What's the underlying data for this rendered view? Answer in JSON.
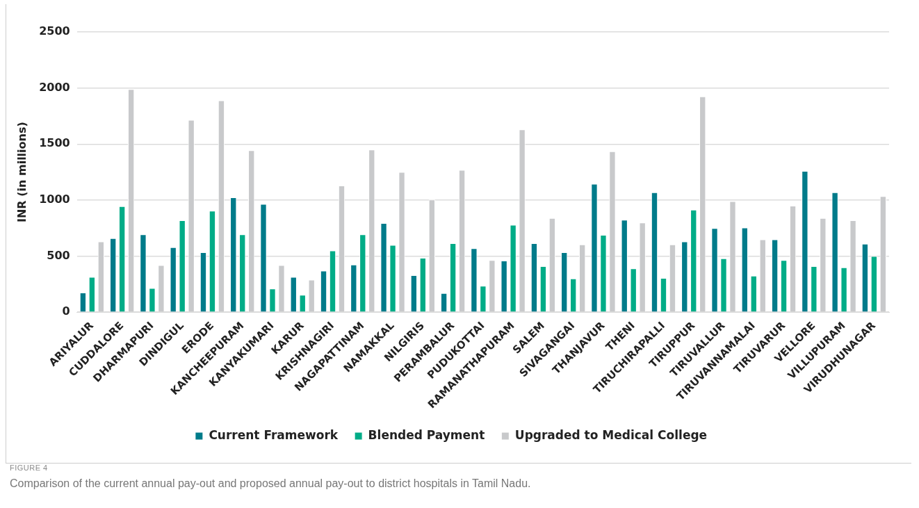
{
  "chart_data": {
    "type": "bar",
    "ylabel": "INR (in millions)",
    "categories": [
      "ARIYALUR",
      "CUDDALORE",
      "DHARMAPURI",
      "DINDIGUL",
      "ERODE",
      "KANCHEEPURAM",
      "KANYAKUMARI",
      "KARUR",
      "KRISHNAGIRI",
      "NAGAPATTINAM",
      "NAMAKKAL",
      "NILGIRIS",
      "PERAMBALUR",
      "PUDUKOTTAI",
      "RAMANATHAPURAM",
      "SALEM",
      "SIVAGANGAI",
      "THANJAVUR",
      "THENI",
      "TIRUCHIRAPALLI",
      "TIRUPPUR",
      "TIRUVALLUR",
      "TIRUVANNAMALAI",
      "TIRUVARUR",
      "VELLORE",
      "VILLUPURAM",
      "VIRUDHUNAGAR"
    ],
    "series": [
      {
        "name": "Current Framework",
        "color": "#007b8a",
        "values": [
          175,
          660,
          695,
          580,
          535,
          1025,
          965,
          315,
          370,
          425,
          795,
          330,
          170,
          570,
          460,
          615,
          535,
          1145,
          825,
          1070,
          630,
          750,
          755,
          650,
          1260,
          1070,
          610
        ]
      },
      {
        "name": "Blended Payment",
        "color": "#00ac87",
        "values": [
          315,
          945,
          215,
          820,
          905,
          695,
          210,
          155,
          550,
          695,
          600,
          485,
          615,
          235,
          780,
          410,
          300,
          690,
          390,
          305,
          915,
          480,
          325,
          465,
          410,
          400,
          500
        ]
      },
      {
        "name": "Upgraded to Medical College",
        "color": "#c8c9cb",
        "values": [
          630,
          1990,
          420,
          1715,
          1890,
          1445,
          420,
          290,
          1130,
          1450,
          1250,
          1005,
          1270,
          465,
          1630,
          840,
          605,
          1435,
          800,
          605,
          1925,
          990,
          650,
          950,
          840,
          820,
          1035
        ]
      }
    ],
    "ylim": [
      0,
      2500
    ],
    "yticks": [
      0,
      500,
      1000,
      1500,
      2000,
      2500
    ],
    "grid": "y",
    "legend": "bottom",
    "annotations": [
      "FIGURE 4",
      "Comparison of the current annual pay-out and proposed annual pay-out to district hospitals in Tamil Nadu."
    ]
  }
}
